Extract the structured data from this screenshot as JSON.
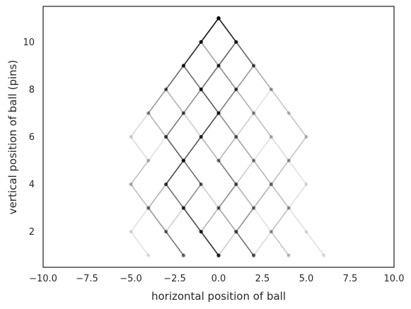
{
  "chart_data": {
    "type": "line",
    "title": "",
    "xlabel": "horizontal position of ball",
    "ylabel": "vertical position of ball (pins)",
    "xlim": [
      -10,
      10
    ],
    "ylim": [
      0.5,
      11.5
    ],
    "xticks": [
      "−10.0",
      "−7.5",
      "−5.0",
      "−2.5",
      "0.0",
      "2.5",
      "5.0",
      "7.5",
      "10.0"
    ],
    "xtick_values": [
      -10,
      -7.5,
      -5,
      -2.5,
      0,
      2.5,
      5,
      7.5,
      10
    ],
    "yticks": [
      "2",
      "4",
      "6",
      "8",
      "10"
    ],
    "ytick_values": [
      2,
      4,
      6,
      8,
      10
    ],
    "grid": false,
    "line_color": "#000000",
    "point_color": "#000000",
    "paths": [
      {
        "x": [
          0,
          -1,
          -2,
          -1,
          0,
          -1,
          -2,
          -3,
          -2,
          -1,
          0
        ],
        "y": [
          11,
          10,
          9,
          8,
          7,
          6,
          5,
          4,
          3,
          2,
          1
        ],
        "opacity": 0.45
      },
      {
        "x": [
          0,
          -1,
          -2,
          -3,
          -2,
          -3,
          -2,
          -3,
          -4,
          -3,
          -2
        ],
        "y": [
          11,
          10,
          9,
          8,
          7,
          6,
          5,
          4,
          3,
          2,
          1
        ],
        "opacity": 0.3
      },
      {
        "x": [
          0,
          1,
          0,
          -1,
          -2,
          -3,
          -2,
          -1,
          -2,
          -1,
          0
        ],
        "y": [
          11,
          10,
          9,
          8,
          7,
          6,
          5,
          4,
          3,
          2,
          1
        ],
        "opacity": 0.3
      },
      {
        "x": [
          0,
          1,
          2,
          1,
          0,
          1,
          0,
          1,
          2,
          1,
          2
        ],
        "y": [
          11,
          10,
          9,
          8,
          7,
          6,
          5,
          4,
          3,
          2,
          1
        ],
        "opacity": 0.3
      },
      {
        "x": [
          0,
          1,
          0,
          1,
          0,
          -1,
          0,
          1,
          0,
          -1,
          0
        ],
        "y": [
          11,
          10,
          9,
          8,
          7,
          6,
          5,
          4,
          3,
          2,
          1
        ],
        "opacity": 0.3
      },
      {
        "x": [
          0,
          -1,
          -2,
          -3,
          -4,
          -5,
          -4,
          -5,
          -4,
          -3,
          -2
        ],
        "y": [
          11,
          10,
          9,
          8,
          7,
          6,
          5,
          4,
          3,
          2,
          1
        ],
        "opacity": 0.15
      },
      {
        "x": [
          0,
          1,
          2,
          3,
          4,
          5,
          4,
          5,
          4,
          5,
          6
        ],
        "y": [
          11,
          10,
          9,
          8,
          7,
          6,
          5,
          4,
          3,
          2,
          1
        ],
        "opacity": 0.12
      },
      {
        "x": [
          0,
          -1,
          -2,
          -3,
          -4,
          -3,
          -4,
          -5,
          -4,
          -5,
          -4
        ],
        "y": [
          11,
          10,
          9,
          8,
          7,
          6,
          5,
          4,
          3,
          2,
          1
        ],
        "opacity": 0.12
      },
      {
        "x": [
          0,
          1,
          2,
          3,
          2,
          3,
          2,
          3,
          2,
          3,
          4
        ],
        "y": [
          11,
          10,
          9,
          8,
          7,
          6,
          5,
          4,
          3,
          2,
          1
        ],
        "opacity": 0.12
      },
      {
        "x": [
          0,
          1,
          2,
          1,
          2,
          3,
          4,
          3,
          4,
          3,
          2
        ],
        "y": [
          11,
          10,
          9,
          8,
          7,
          6,
          5,
          4,
          3,
          2,
          1
        ],
        "opacity": 0.15
      },
      {
        "x": [
          0,
          -1,
          0,
          1,
          2,
          1,
          2,
          1,
          0,
          1,
          2
        ],
        "y": [
          11,
          10,
          9,
          8,
          7,
          6,
          5,
          4,
          3,
          2,
          1
        ],
        "opacity": 0.2
      },
      {
        "x": [
          0,
          -1,
          -2,
          -1,
          -2,
          -1,
          -2,
          -1,
          -2,
          -3,
          -2
        ],
        "y": [
          11,
          10,
          9,
          8,
          7,
          6,
          5,
          4,
          3,
          2,
          1
        ],
        "opacity": 0.2
      },
      {
        "x": [
          0,
          1,
          0,
          -1,
          0,
          1,
          2,
          3,
          2,
          1,
          0
        ],
        "y": [
          11,
          10,
          9,
          8,
          7,
          6,
          5,
          4,
          3,
          2,
          1
        ],
        "opacity": 0.2
      },
      {
        "x": [
          0,
          -1,
          -2,
          -3,
          -4,
          -3,
          -2,
          -3,
          -2,
          -1,
          0
        ],
        "y": [
          11,
          10,
          9,
          8,
          7,
          6,
          5,
          4,
          3,
          2,
          1
        ],
        "opacity": 0.2
      },
      {
        "x": [
          0,
          1,
          2,
          3,
          4,
          5,
          4,
          3,
          4,
          3,
          4
        ],
        "y": [
          11,
          10,
          9,
          8,
          7,
          6,
          5,
          4,
          3,
          2,
          1
        ],
        "opacity": 0.12
      },
      {
        "x": [
          0,
          -1,
          0,
          -1,
          0,
          -1,
          -2,
          -1,
          0,
          1,
          2
        ],
        "y": [
          11,
          10,
          9,
          8,
          7,
          6,
          5,
          4,
          3,
          2,
          1
        ],
        "opacity": 0.2
      }
    ]
  }
}
